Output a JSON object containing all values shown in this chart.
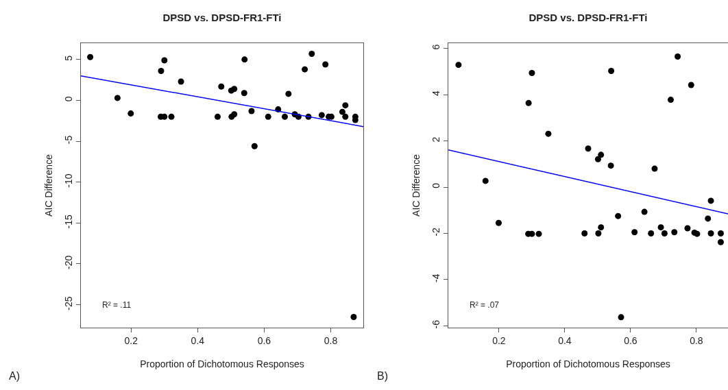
{
  "chart_data": [
    {
      "type": "scatter",
      "title": "DPSD vs. DPSD-FR1-FTi",
      "xlabel": "Proportion of Dichotomous Responses",
      "ylabel": "AIC Difference",
      "xlim": [
        0.049,
        0.898
      ],
      "ylim": [
        -27.8,
        7
      ],
      "xticks": [
        0.2,
        0.4,
        0.6,
        0.8
      ],
      "yticks": [
        5,
        0,
        -5,
        -10,
        -15,
        -20,
        -25
      ],
      "grid": false,
      "annotations": [
        "R² = .11",
        "A)"
      ],
      "series": [
        {
          "color": "#000000",
          "marker": "circle",
          "x": [
            0.077,
            0.159,
            0.29,
            0.3,
            0.35,
            0.471,
            0.501,
            0.51,
            0.541,
            0.54,
            0.673,
            0.722,
            0.743,
            0.784,
            0.844,
            0.199,
            0.289,
            0.3,
            0.321,
            0.46,
            0.502,
            0.51,
            0.562,
            0.571,
            0.612,
            0.642,
            0.662,
            0.692,
            0.703,
            0.733,
            0.773,
            0.794,
            0.802,
            0.835,
            0.844,
            0.874,
            0.874,
            0.869
          ],
          "values": [
            5.3,
            0.3,
            3.6,
            4.9,
            2.3,
            1.7,
            1.2,
            1.4,
            5.0,
            0.9,
            0.8,
            3.8,
            5.7,
            4.4,
            -0.6,
            -1.6,
            -2.0,
            -2.0,
            -2.0,
            -2.0,
            -2.0,
            -1.7,
            -1.3,
            -5.6,
            -2.0,
            -1.1,
            -2.0,
            -1.7,
            -2.0,
            -2.0,
            -1.8,
            -2.0,
            -2.0,
            -1.4,
            -2.0,
            -2.0,
            -2.4,
            -26.5
          ]
        },
        {
          "type": "line",
          "marker": "none",
          "color": "#0000ff",
          "x": [
            0.049,
            0.898
          ],
          "values": [
            3.0,
            -3.2
          ]
        }
      ]
    },
    {
      "type": "scatter",
      "title": "DPSD vs. DPSD-FR1-FTi",
      "xlabel": "Proportion of Dichotomous Responses",
      "ylabel": "AIC Difference",
      "xlim": [
        0.046,
        0.896
      ],
      "ylim": [
        -6.08,
        6.23
      ],
      "xticks": [
        0.2,
        0.4,
        0.6,
        0.8
      ],
      "yticks": [
        6,
        4,
        2,
        0,
        -2,
        -4,
        -6
      ],
      "grid": false,
      "annotations": [
        "R² = .07",
        "B)"
      ],
      "series": [
        {
          "color": "#000000",
          "marker": "circle",
          "x": [
            0.077,
            0.159,
            0.29,
            0.3,
            0.35,
            0.471,
            0.501,
            0.51,
            0.541,
            0.54,
            0.673,
            0.722,
            0.743,
            0.784,
            0.844,
            0.199,
            0.289,
            0.3,
            0.321,
            0.46,
            0.502,
            0.51,
            0.562,
            0.571,
            0.612,
            0.642,
            0.662,
            0.692,
            0.703,
            0.733,
            0.773,
            0.794,
            0.802,
            0.835,
            0.844,
            0.874,
            0.874
          ],
          "values": [
            5.29,
            0.27,
            3.64,
            4.94,
            2.31,
            1.67,
            1.21,
            1.4,
            5.03,
            0.93,
            0.8,
            3.78,
            5.65,
            4.42,
            -0.59,
            -1.55,
            -2.02,
            -2.02,
            -2.02,
            -2.0,
            -2.0,
            -1.74,
            -1.25,
            -5.63,
            -1.95,
            -1.07,
            -2.0,
            -1.74,
            -2.0,
            -1.95,
            -1.78,
            -1.97,
            -2.02,
            -1.36,
            -2.0,
            -2.0,
            -2.38
          ]
        },
        {
          "type": "line",
          "marker": "none",
          "color": "#0000ff",
          "x": [
            0.046,
            0.896
          ],
          "values": [
            1.61,
            -1.16
          ]
        }
      ]
    }
  ]
}
